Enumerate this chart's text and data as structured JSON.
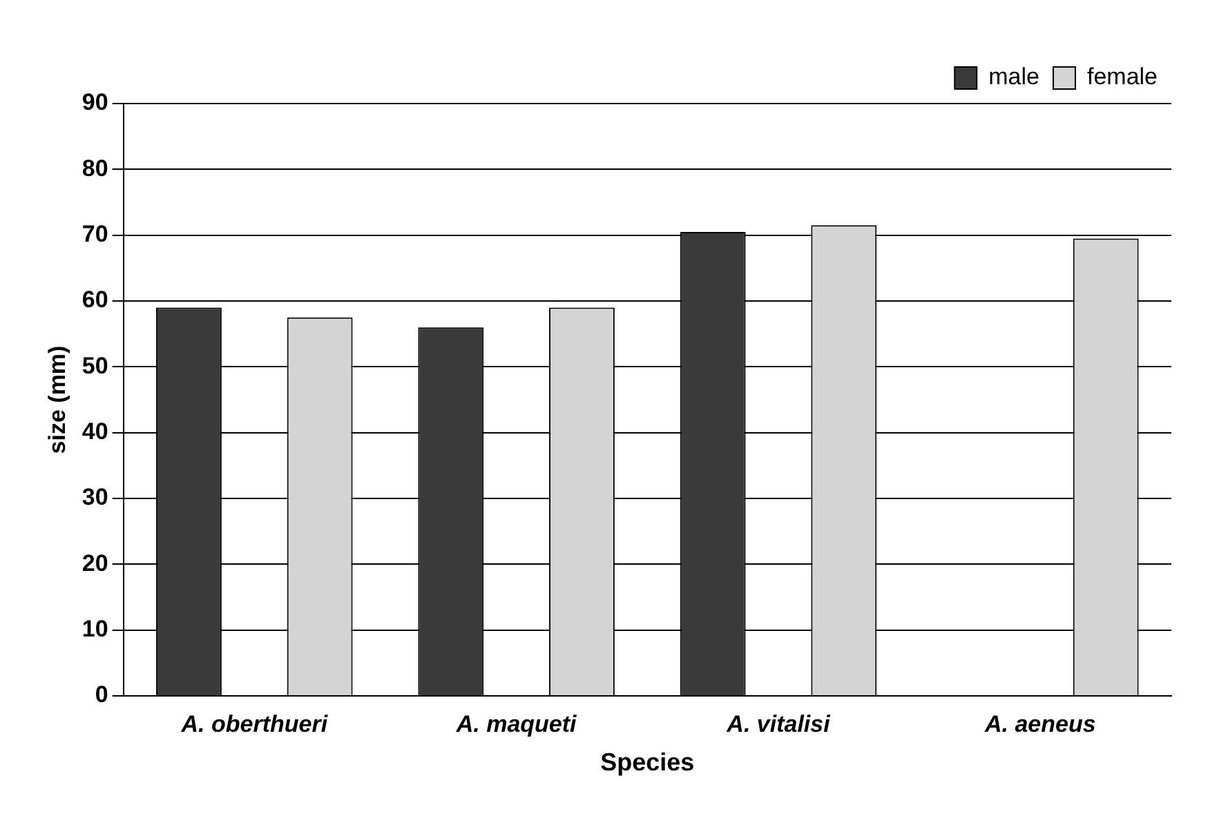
{
  "chart_data": {
    "type": "bar",
    "xlabel": "Species",
    "ylabel": "size (mm)",
    "categories": [
      "A. oberthueri",
      "A. maqueti",
      "A. vitalisi",
      "A. aeneus"
    ],
    "series": [
      {
        "name": "male",
        "color": "#3a3a3a",
        "values": [
          59,
          56,
          70.5,
          null
        ]
      },
      {
        "name": "female",
        "color": "#d4d4d4",
        "values": [
          57.5,
          59,
          71.5,
          69.5
        ]
      }
    ],
    "ylim": [
      0,
      90
    ],
    "yticks": [
      0,
      10,
      20,
      30,
      40,
      50,
      60,
      70,
      80,
      90
    ],
    "grid": "y",
    "legend": "top right"
  }
}
